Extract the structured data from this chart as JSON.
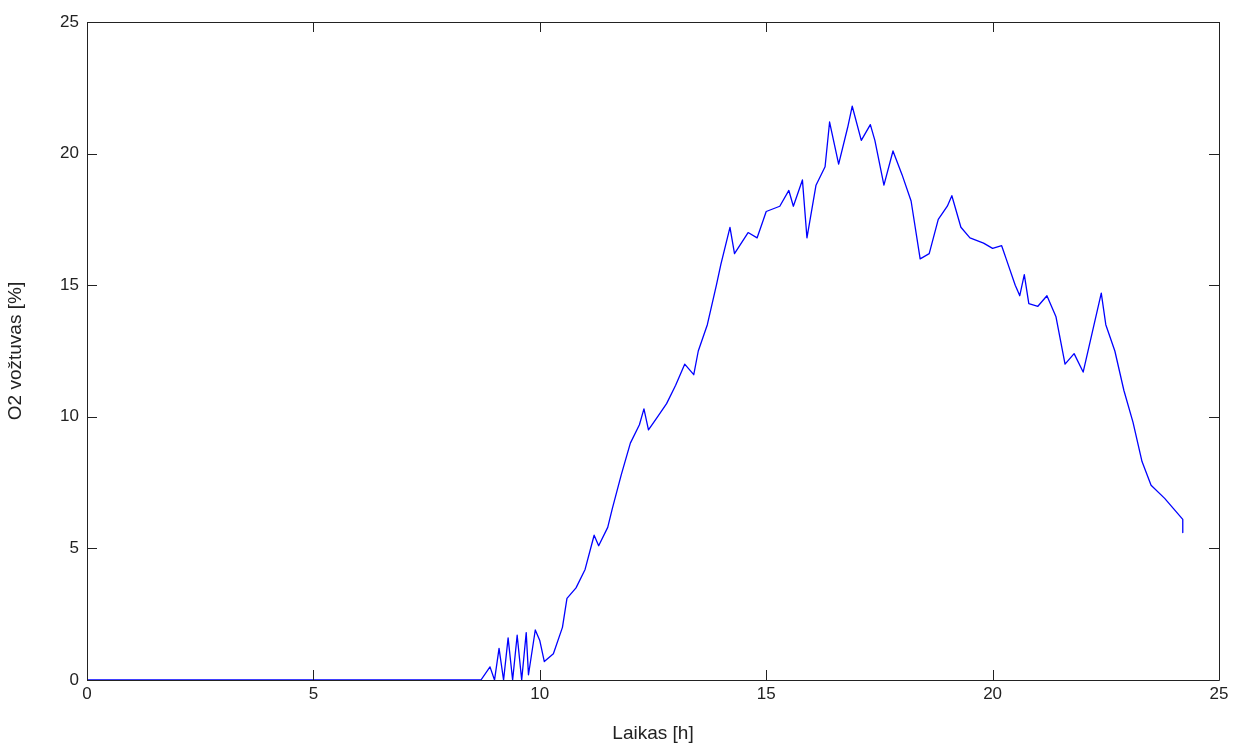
{
  "chart_data": {
    "type": "line",
    "xlabel": "Laikas [h]",
    "ylabel": "O2 vožtuvas [%]",
    "xlim": [
      0,
      25
    ],
    "xticks": [
      0,
      5,
      10,
      15,
      20,
      25
    ],
    "ylim": [
      0,
      25
    ],
    "yticks": [
      0,
      5,
      10,
      15,
      20,
      25
    ],
    "grid": false,
    "legend": false,
    "marker": "none",
    "line_style": "solid",
    "series": [
      {
        "color": "#0000ff",
        "x": [
          0,
          8.7,
          8.9,
          9.0,
          9.1,
          9.2,
          9.3,
          9.4,
          9.5,
          9.6,
          9.7,
          9.75,
          9.9,
          10.0,
          10.1,
          10.3,
          10.5,
          10.6,
          10.8,
          11.0,
          11.2,
          11.3,
          11.5,
          11.6,
          11.8,
          12.0,
          12.2,
          12.3,
          12.4,
          12.6,
          12.8,
          13.0,
          13.2,
          13.4,
          13.5,
          13.7,
          13.9,
          14.0,
          14.2,
          14.3,
          14.6,
          14.8,
          15.0,
          15.3,
          15.5,
          15.6,
          15.8,
          15.9,
          16.1,
          16.3,
          16.4,
          16.6,
          16.8,
          16.9,
          17.1,
          17.3,
          17.4,
          17.6,
          17.8,
          18.0,
          18.2,
          18.4,
          18.6,
          18.8,
          19.0,
          19.1,
          19.3,
          19.5,
          19.8,
          20.0,
          20.2,
          20.3,
          20.5,
          20.6,
          20.7,
          20.8,
          21.0,
          21.2,
          21.4,
          21.6,
          21.8,
          22.0,
          22.2,
          22.4,
          22.5,
          22.7,
          22.9,
          23.1,
          23.3,
          23.5,
          23.8,
          24.0,
          24.2,
          24.2
        ],
        "values": [
          0,
          0,
          0.5,
          0,
          1.2,
          0,
          1.6,
          0,
          1.7,
          0,
          1.8,
          0.2,
          1.9,
          1.5,
          0.7,
          1.0,
          2.0,
          3.1,
          3.5,
          4.2,
          5.5,
          5.1,
          5.8,
          6.5,
          7.8,
          9.0,
          9.7,
          10.3,
          9.5,
          10.0,
          10.5,
          11.2,
          12.0,
          11.6,
          12.5,
          13.5,
          15.0,
          15.8,
          17.2,
          16.2,
          17.0,
          16.8,
          17.8,
          18.0,
          18.6,
          18.0,
          19.0,
          16.8,
          18.8,
          19.5,
          21.2,
          19.6,
          21.0,
          21.8,
          20.5,
          21.1,
          20.5,
          18.8,
          20.1,
          19.2,
          18.2,
          16.0,
          16.2,
          17.5,
          18.0,
          18.4,
          17.2,
          16.8,
          16.6,
          16.4,
          16.5,
          16.0,
          15.0,
          14.6,
          15.4,
          14.3,
          14.2,
          14.6,
          13.8,
          12.0,
          12.4,
          11.7,
          13.2,
          14.7,
          13.5,
          12.5,
          11.0,
          9.8,
          8.3,
          7.4,
          6.9,
          6.5,
          6.1,
          5.6
        ]
      }
    ]
  }
}
